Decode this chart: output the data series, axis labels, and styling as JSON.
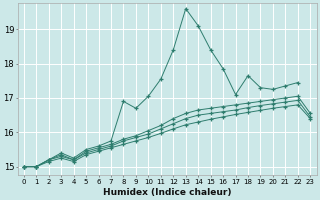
{
  "title": "",
  "xlabel": "Humidex (Indice chaleur)",
  "ylabel": "",
  "bg_color": "#cce8e8",
  "grid_color": "#ffffff",
  "line_color": "#2e7d6e",
  "xlim": [
    -0.5,
    23.5
  ],
  "ylim": [
    14.75,
    19.75
  ],
  "yticks": [
    15,
    16,
    17,
    18,
    19
  ],
  "xticks": [
    0,
    1,
    2,
    3,
    4,
    5,
    6,
    7,
    8,
    9,
    10,
    11,
    12,
    13,
    14,
    15,
    16,
    17,
    18,
    19,
    20,
    21,
    22,
    23
  ],
  "lines": [
    {
      "x": [
        0,
        1,
        2,
        3,
        4,
        5,
        6,
        7,
        8,
        9,
        10,
        11,
        12,
        13,
        14,
        15,
        16,
        17,
        18,
        19,
        20,
        21,
        22
      ],
      "y": [
        15.0,
        15.0,
        15.2,
        15.4,
        15.25,
        15.5,
        15.6,
        15.75,
        16.9,
        16.7,
        17.05,
        17.55,
        18.4,
        19.6,
        19.1,
        18.4,
        17.85,
        17.1,
        17.65,
        17.3,
        17.25,
        17.35,
        17.45
      ]
    },
    {
      "x": [
        0,
        1,
        2,
        3,
        4,
        5,
        6,
        7,
        8,
        9,
        10,
        11,
        12,
        13,
        14,
        15,
        16,
        17,
        18,
        19,
        20,
        21,
        22,
        23
      ],
      "y": [
        15.0,
        15.0,
        15.2,
        15.35,
        15.2,
        15.45,
        15.55,
        15.65,
        15.8,
        15.9,
        16.05,
        16.2,
        16.4,
        16.55,
        16.65,
        16.7,
        16.75,
        16.8,
        16.85,
        16.9,
        16.95,
        17.0,
        17.05,
        16.55
      ]
    },
    {
      "x": [
        0,
        1,
        2,
        3,
        4,
        5,
        6,
        7,
        8,
        9,
        10,
        11,
        12,
        13,
        14,
        15,
        16,
        17,
        18,
        19,
        20,
        21,
        22,
        23
      ],
      "y": [
        15.0,
        15.0,
        15.2,
        15.3,
        15.2,
        15.4,
        15.5,
        15.6,
        15.75,
        15.85,
        15.95,
        16.1,
        16.25,
        16.4,
        16.5,
        16.55,
        16.6,
        16.65,
        16.72,
        16.78,
        16.83,
        16.88,
        16.93,
        16.45
      ]
    },
    {
      "x": [
        0,
        1,
        2,
        3,
        4,
        5,
        6,
        7,
        8,
        9,
        10,
        11,
        12,
        13,
        14,
        15,
        16,
        17,
        18,
        19,
        20,
        21,
        22,
        23
      ],
      "y": [
        15.0,
        15.0,
        15.15,
        15.25,
        15.15,
        15.35,
        15.45,
        15.55,
        15.65,
        15.75,
        15.85,
        15.97,
        16.1,
        16.22,
        16.3,
        16.38,
        16.45,
        16.52,
        16.58,
        16.64,
        16.7,
        16.75,
        16.8,
        16.4
      ]
    }
  ]
}
